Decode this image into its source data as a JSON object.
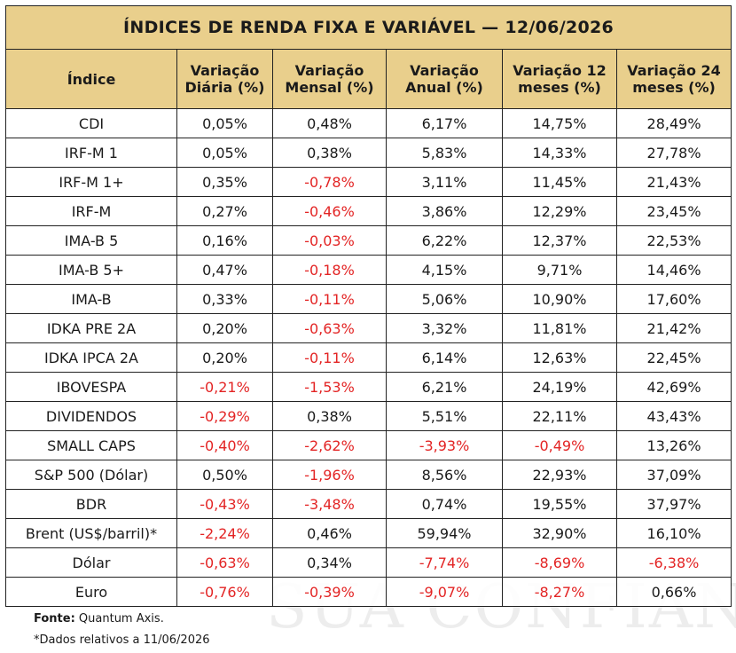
{
  "title": "ÍNDICES DE RENDA FIXA E VARIÁVEL — 12/06/2026",
  "watermark": "SUA CONFIANÇA",
  "headers": [
    "Índice",
    "Variação Diária (%)",
    "Variação Mensal (%)",
    "Variação Anual (%)",
    "Variação 12 meses (%)",
    "Variação 24 meses (%)"
  ],
  "rows": [
    [
      "CDI",
      "0,05%",
      "0,48%",
      "6,17%",
      "14,75%",
      "28,49%"
    ],
    [
      "IRF-M 1",
      "0,05%",
      "0,38%",
      "5,83%",
      "14,33%",
      "27,78%"
    ],
    [
      "IRF-M 1+",
      "0,35%",
      "-0,78%",
      "3,11%",
      "11,45%",
      "21,43%"
    ],
    [
      "IRF-M",
      "0,27%",
      "-0,46%",
      "3,86%",
      "12,29%",
      "23,45%"
    ],
    [
      "IMA-B 5",
      "0,16%",
      "-0,03%",
      "6,22%",
      "12,37%",
      "22,53%"
    ],
    [
      "IMA-B 5+",
      "0,47%",
      "-0,18%",
      "4,15%",
      "9,71%",
      "14,46%"
    ],
    [
      "IMA-B",
      "0,33%",
      "-0,11%",
      "5,06%",
      "10,90%",
      "17,60%"
    ],
    [
      "IDKA PRE 2A",
      "0,20%",
      "-0,63%",
      "3,32%",
      "11,81%",
      "21,42%"
    ],
    [
      "IDKA IPCA 2A",
      "0,20%",
      "-0,11%",
      "6,14%",
      "12,63%",
      "22,45%"
    ],
    [
      "IBOVESPA",
      "-0,21%",
      "-1,53%",
      "6,21%",
      "24,19%",
      "42,69%"
    ],
    [
      "DIVIDENDOS",
      "-0,29%",
      "0,38%",
      "5,51%",
      "22,11%",
      "43,43%"
    ],
    [
      "SMALL CAPS",
      "-0,40%",
      "-2,62%",
      "-3,93%",
      "-0,49%",
      "13,26%"
    ],
    [
      "S&P 500 (Dólar)",
      "0,50%",
      "-1,96%",
      "8,56%",
      "22,93%",
      "37,09%"
    ],
    [
      "BDR",
      "-0,43%",
      "-3,48%",
      "0,74%",
      "19,55%",
      "37,97%"
    ],
    [
      "Brent (US$/barril)*",
      "-2,24%",
      "0,46%",
      "59,94%",
      "32,90%",
      "16,10%"
    ],
    [
      "Dólar",
      "-0,63%",
      "0,34%",
      "-7,74%",
      "-8,69%",
      "-6,38%"
    ],
    [
      "Euro",
      "-0,76%",
      "-0,39%",
      "-9,07%",
      "-8,27%",
      "0,66%"
    ]
  ],
  "footer": {
    "source_label": "Fonte:",
    "source_value": " Quantum Axis.",
    "note": "*Dados relativos a 11/06/2026"
  },
  "colors": {
    "header_bg": "#e9cf8c",
    "negative": "#e32424",
    "border": "#222222"
  }
}
